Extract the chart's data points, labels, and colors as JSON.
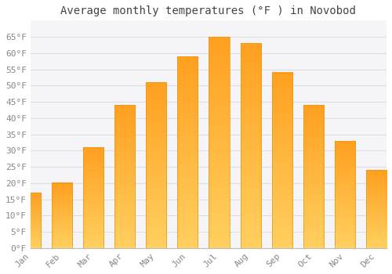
{
  "title": "Average monthly temperatures (°F ) in Novobod",
  "months": [
    "Jan",
    "Feb",
    "Mar",
    "Apr",
    "May",
    "Jun",
    "Jul",
    "Aug",
    "Sep",
    "Oct",
    "Nov",
    "Dec"
  ],
  "values": [
    17,
    20,
    31,
    44,
    51,
    59,
    65,
    63,
    54,
    44,
    33,
    24
  ],
  "bar_color_top": "#FFA500",
  "bar_color_bottom": "#FFD060",
  "bar_edge_color": "#E8960A",
  "background_color": "#FFFFFF",
  "plot_bg_color": "#F5F5F8",
  "grid_color": "#DDDDE8",
  "text_color": "#888888",
  "title_color": "#444444",
  "ylim": [
    0,
    70
  ],
  "yticks": [
    0,
    5,
    10,
    15,
    20,
    25,
    30,
    35,
    40,
    45,
    50,
    55,
    60,
    65
  ],
  "title_fontsize": 10,
  "tick_fontsize": 8
}
